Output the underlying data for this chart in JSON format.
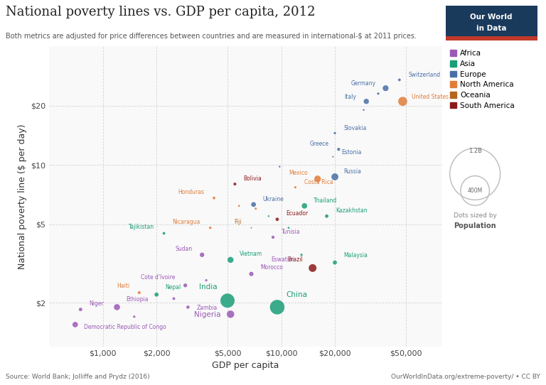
{
  "title": "National poverty lines vs. GDP per capita, 2012",
  "subtitle": "Both metrics are adjusted for price differences between countries and are measured in international-$ at 2011 prices.",
  "xlabel": "GDP per capita",
  "ylabel": "National poverty line ($ per day)",
  "source": "Source: World Bank; Jolliffe and Prydz (2016)",
  "url": "OurWorldInData.org/extreme-poverty/ • CC BY",
  "bg_color": "#ffffff",
  "plot_bg_color": "#f9f9f9",
  "region_colors": {
    "Africa": "#9B59B6",
    "Asia": "#1a9e78",
    "Europe": "#4a6fa5",
    "North America": "#e07d3a",
    "Oceania": "#b5651d",
    "South America": "#8B1A1A"
  },
  "region_order": [
    "Africa",
    "Asia",
    "Europe",
    "North America",
    "Oceania",
    "South America"
  ],
  "points": [
    {
      "name": "Switzerland",
      "gdp": 46000,
      "poverty": 27.0,
      "pop": 8000000,
      "region": "Europe"
    },
    {
      "name": "Germany",
      "gdp": 38500,
      "poverty": 24.5,
      "pop": 82000000,
      "region": "Europe"
    },
    {
      "name": "United States",
      "gdp": 48000,
      "poverty": 21.0,
      "pop": 315000000,
      "region": "North America"
    },
    {
      "name": "Italy",
      "gdp": 30000,
      "poverty": 21.0,
      "pop": 60000000,
      "region": "Europe"
    },
    {
      "name": "Slovakia",
      "gdp": 20000,
      "poverty": 14.5,
      "pop": 5000000,
      "region": "Europe"
    },
    {
      "name": "Greece",
      "gdp": 21000,
      "poverty": 12.0,
      "pop": 11000000,
      "region": "Europe"
    },
    {
      "name": "Estonia",
      "gdp": 19500,
      "poverty": 11.0,
      "pop": 1300000,
      "region": "Europe"
    },
    {
      "name": "Russia",
      "gdp": 20000,
      "poverty": 8.7,
      "pop": 143000000,
      "region": "Europe"
    },
    {
      "name": "Mexico",
      "gdp": 16000,
      "poverty": 8.5,
      "pop": 120000000,
      "region": "North America"
    },
    {
      "name": "Costa Rica",
      "gdp": 12000,
      "poverty": 7.7,
      "pop": 4700000,
      "region": "North America"
    },
    {
      "name": "Thailand",
      "gdp": 13500,
      "poverty": 6.2,
      "pop": 67000000,
      "region": "Asia"
    },
    {
      "name": "Kazakhstan",
      "gdp": 18000,
      "poverty": 5.5,
      "pop": 17000000,
      "region": "Asia"
    },
    {
      "name": "Malaysia",
      "gdp": 20000,
      "poverty": 3.2,
      "pop": 29000000,
      "region": "Asia"
    },
    {
      "name": "Brazil",
      "gdp": 15000,
      "poverty": 3.0,
      "pop": 200000000,
      "region": "South America"
    },
    {
      "name": "Bolivia",
      "gdp": 5500,
      "poverty": 8.0,
      "pop": 10000000,
      "region": "South America"
    },
    {
      "name": "Honduras",
      "gdp": 4200,
      "poverty": 6.8,
      "pop": 8000000,
      "region": "North America"
    },
    {
      "name": "Ukraine",
      "gdp": 7000,
      "poverty": 6.3,
      "pop": 45000000,
      "region": "Europe"
    },
    {
      "name": "Ecuador",
      "gdp": 9500,
      "poverty": 5.3,
      "pop": 15000000,
      "region": "South America"
    },
    {
      "name": "Nicaragua",
      "gdp": 4000,
      "poverty": 4.8,
      "pop": 6000000,
      "region": "North America"
    },
    {
      "name": "Fiji",
      "gdp": 6800,
      "poverty": 4.8,
      "pop": 900000,
      "region": "Oceania"
    },
    {
      "name": "Tunisia",
      "gdp": 9000,
      "poverty": 4.3,
      "pop": 11000000,
      "region": "Africa"
    },
    {
      "name": "Tajikistan",
      "gdp": 2200,
      "poverty": 4.5,
      "pop": 8000000,
      "region": "Asia"
    },
    {
      "name": "Sudan",
      "gdp": 3600,
      "poverty": 3.5,
      "pop": 37000000,
      "region": "Africa"
    },
    {
      "name": "Vietnam",
      "gdp": 5200,
      "poverty": 3.3,
      "pop": 89000000,
      "region": "Asia"
    },
    {
      "name": "Eswatini",
      "gdp": 7800,
      "poverty": 3.1,
      "pop": 1200000,
      "region": "Africa"
    },
    {
      "name": "Morocco",
      "gdp": 6800,
      "poverty": 2.8,
      "pop": 33000000,
      "region": "Africa"
    },
    {
      "name": "China",
      "gdp": 9500,
      "poverty": 1.9,
      "pop": 1370000000,
      "region": "Asia"
    },
    {
      "name": "India",
      "gdp": 5000,
      "poverty": 2.05,
      "pop": 1250000000,
      "region": "Asia"
    },
    {
      "name": "Nigeria",
      "gdp": 5200,
      "poverty": 1.75,
      "pop": 170000000,
      "region": "Africa"
    },
    {
      "name": "Cote d'Ivoire",
      "gdp": 2900,
      "poverty": 2.45,
      "pop": 22000000,
      "region": "Africa"
    },
    {
      "name": "Nepal",
      "gdp": 2000,
      "poverty": 2.2,
      "pop": 28000000,
      "region": "Asia"
    },
    {
      "name": "Haiti",
      "gdp": 1600,
      "poverty": 2.25,
      "pop": 10000000,
      "region": "North America"
    },
    {
      "name": "Zambia",
      "gdp": 3000,
      "poverty": 1.9,
      "pop": 14000000,
      "region": "Africa"
    },
    {
      "name": "Ethiopia",
      "gdp": 1200,
      "poverty": 1.9,
      "pop": 94000000,
      "region": "Africa"
    },
    {
      "name": "Niger",
      "gdp": 750,
      "poverty": 1.85,
      "pop": 17000000,
      "region": "Africa"
    },
    {
      "name": "Democratic Republic of Congo",
      "gdp": 700,
      "poverty": 1.55,
      "pop": 67000000,
      "region": "Africa"
    },
    {
      "name": "",
      "gdp": 9800,
      "poverty": 9.8,
      "pop": 2000000,
      "region": "Europe"
    },
    {
      "name": "",
      "gdp": 29000,
      "poverty": 19.0,
      "pop": 2000000,
      "region": "Europe"
    },
    {
      "name": "",
      "gdp": 35000,
      "poverty": 23.0,
      "pop": 5000000,
      "region": "Europe"
    },
    {
      "name": "",
      "gdp": 5800,
      "poverty": 6.2,
      "pop": 3000000,
      "region": "North America"
    },
    {
      "name": "",
      "gdp": 7200,
      "poverty": 6.0,
      "pop": 4000000,
      "region": "North America"
    },
    {
      "name": "",
      "gdp": 8500,
      "poverty": 5.5,
      "pop": 2000000,
      "region": "Asia"
    },
    {
      "name": "",
      "gdp": 11000,
      "poverty": 4.8,
      "pop": 3000000,
      "region": "Asia"
    },
    {
      "name": "",
      "gdp": 1500,
      "poverty": 1.7,
      "pop": 5000000,
      "region": "Africa"
    },
    {
      "name": "",
      "gdp": 2500,
      "poverty": 2.1,
      "pop": 8000000,
      "region": "Africa"
    },
    {
      "name": "",
      "gdp": 3800,
      "poverty": 2.6,
      "pop": 5000000,
      "region": "Africa"
    },
    {
      "name": "",
      "gdp": 13000,
      "poverty": 3.5,
      "pop": 5000000,
      "region": "Asia"
    }
  ],
  "label_offsets": {
    "Switzerland": [
      1,
      0.5,
      "left"
    ],
    "Germany": [
      -1,
      0.4,
      "right"
    ],
    "United States": [
      1,
      0.3,
      "left"
    ],
    "Italy": [
      -1,
      0.3,
      "right"
    ],
    "Slovakia": [
      1,
      0.3,
      "left"
    ],
    "Greece": [
      -1,
      0.3,
      "right"
    ],
    "Estonia": [
      1,
      0.2,
      "left"
    ],
    "Russia": [
      1,
      0.2,
      "left"
    ],
    "Mexico": [
      -1,
      0.3,
      "right"
    ],
    "Costa Rica": [
      1,
      0.15,
      "left"
    ],
    "Thailand": [
      1,
      0.15,
      "left"
    ],
    "Kazakhstan": [
      1,
      0.15,
      "left"
    ],
    "Malaysia": [
      1,
      0.15,
      "left"
    ],
    "Brazil": [
      -1,
      0.2,
      "right"
    ],
    "Bolivia": [
      1,
      0.2,
      "left"
    ],
    "Honduras": [
      -1,
      0.2,
      "right"
    ],
    "Ukraine": [
      1,
      0.15,
      "left"
    ],
    "Ecuador": [
      1,
      0.15,
      "left"
    ],
    "Nicaragua": [
      -1,
      0.15,
      "right"
    ],
    "Fiji": [
      -1,
      0.15,
      "right"
    ],
    "Tunisia": [
      1,
      0.12,
      "left"
    ],
    "Tajikistan": [
      -1,
      0.15,
      "right"
    ],
    "Sudan": [
      -1,
      0.12,
      "right"
    ],
    "Vietnam": [
      1,
      0.12,
      "left"
    ],
    "Eswatini": [
      1,
      0.1,
      "left"
    ],
    "Morocco": [
      1,
      0.1,
      "left"
    ],
    "China": [
      1,
      0.2,
      "left"
    ],
    "India": [
      -1,
      0.25,
      "right"
    ],
    "Nigeria": [
      -1,
      -0.08,
      "right"
    ],
    "Cote d'Ivoire": [
      -1,
      0.15,
      "right"
    ],
    "Nepal": [
      1,
      0.1,
      "left"
    ],
    "Haiti": [
      -1,
      0.1,
      "right"
    ],
    "Zambia": [
      1,
      -0.08,
      "left"
    ],
    "Ethiopia": [
      1,
      0.1,
      "left"
    ],
    "Niger": [
      1,
      0.06,
      "left"
    ],
    "Democratic Republic of Congo": [
      1,
      -0.1,
      "left"
    ]
  }
}
